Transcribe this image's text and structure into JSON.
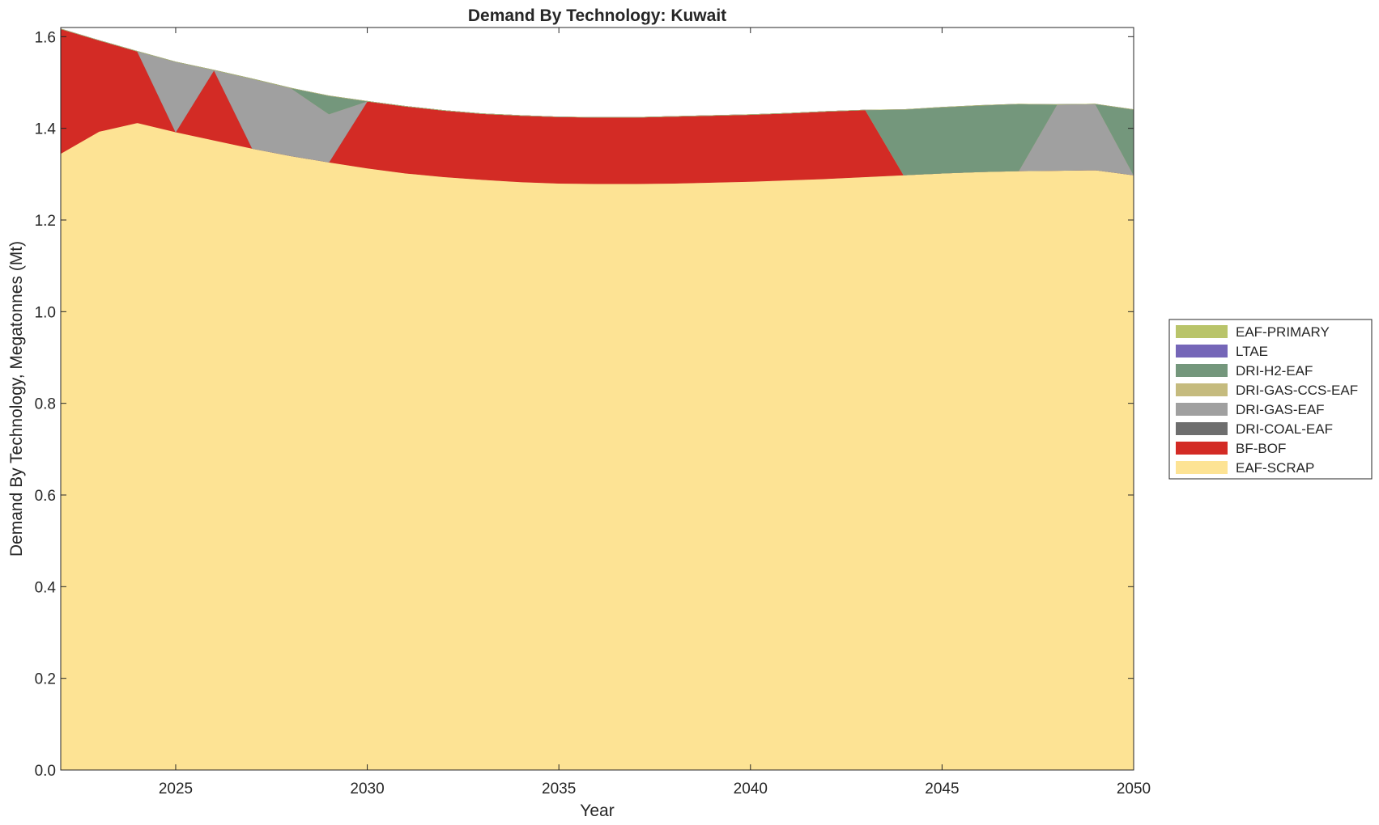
{
  "chart_data": {
    "type": "area",
    "title": "Demand By Technology: Kuwait",
    "xlabel": "Year",
    "ylabel": "Demand By Technology, Megatonnes (Mt)",
    "xlim": [
      2022,
      2050
    ],
    "ylim": [
      0,
      1.62
    ],
    "xticks": [
      2025,
      2030,
      2035,
      2040,
      2045,
      2050
    ],
    "yticks": [
      0.0,
      0.2,
      0.4,
      0.6,
      0.8,
      1.0,
      1.2,
      1.4,
      1.6
    ],
    "xtick_labels": [
      "2025",
      "2030",
      "2035",
      "2040",
      "2045",
      "2050"
    ],
    "ytick_labels": [
      "0.0",
      "0.2",
      "0.4",
      "0.6",
      "0.8",
      "1.0",
      "1.2",
      "1.4",
      "1.6"
    ],
    "legend_position": "outside-right",
    "legend_order": [
      "EAF-PRIMARY",
      "LTAE",
      "DRI-H2-EAF",
      "DRI-GAS-CCS-EAF",
      "DRI-GAS-EAF",
      "DRI-COAL-EAF",
      "BF-BOF",
      "EAF-SCRAP"
    ],
    "x": [
      2022,
      2023,
      2024,
      2025,
      2026,
      2027,
      2028,
      2029,
      2030,
      2031,
      2032,
      2033,
      2034,
      2035,
      2036,
      2037,
      2038,
      2039,
      2040,
      2041,
      2042,
      2043,
      2044,
      2045,
      2046,
      2047,
      2048,
      2049,
      2050
    ],
    "series": [
      {
        "name": "EAF-SCRAP",
        "color": "#fde394",
        "values": [
          1.345,
          1.393,
          1.412,
          1.392,
          1.374,
          1.356,
          1.34,
          1.326,
          1.313,
          1.302,
          1.294,
          1.288,
          1.283,
          1.28,
          1.279,
          1.279,
          1.28,
          1.282,
          1.284,
          1.287,
          1.29,
          1.294,
          1.298,
          1.302,
          1.305,
          1.307,
          1.308,
          1.309,
          1.298
        ]
      },
      {
        "name": "BF-BOF",
        "color": "#d32b25",
        "values": [
          0.272,
          0.199,
          0.156,
          0.0,
          0.153,
          0.0,
          0.0,
          0.0,
          0.146,
          0.146,
          0.145,
          0.144,
          0.145,
          0.145,
          0.145,
          0.145,
          0.146,
          0.146,
          0.146,
          0.146,
          0.147,
          0.146,
          0.0,
          0.0,
          0.0,
          0.0,
          0.0,
          0.0,
          0.0
        ]
      },
      {
        "name": "DRI-COAL-EAF",
        "color": "#6e6e6e",
        "values": [
          0,
          0,
          0,
          0,
          0,
          0,
          0,
          0,
          0,
          0,
          0,
          0,
          0,
          0,
          0,
          0,
          0,
          0,
          0,
          0,
          0,
          0,
          0,
          0,
          0,
          0,
          0,
          0,
          0
        ]
      },
      {
        "name": "DRI-GAS-EAF",
        "color": "#a0a0a0",
        "values": [
          0.0,
          0.0,
          0.0,
          0.153,
          0.0,
          0.152,
          0.148,
          0.105,
          0.0,
          0.0,
          0.0,
          0.0,
          0.0,
          0.0,
          0.0,
          0.0,
          0.0,
          0.0,
          0.0,
          0.0,
          0.0,
          0.0,
          0.0,
          0.0,
          0.0,
          0.0,
          0.144,
          0.144,
          0.0
        ]
      },
      {
        "name": "DRI-GAS-CCS-EAF",
        "color": "#c5bb7e",
        "values": [
          0,
          0,
          0,
          0,
          0,
          0,
          0,
          0,
          0,
          0,
          0,
          0,
          0,
          0,
          0,
          0,
          0,
          0,
          0,
          0,
          0,
          0,
          0,
          0,
          0,
          0,
          0,
          0,
          0
        ]
      },
      {
        "name": "DRI-H2-EAF",
        "color": "#74977c",
        "values": [
          0.0,
          0.0,
          0.0,
          0.0,
          0.0,
          0.0,
          0.0,
          0.04,
          0.0,
          0.0,
          0.0,
          0.0,
          0.0,
          0.0,
          0.0,
          0.0,
          0.0,
          0.0,
          0.0,
          0.0,
          0.0,
          0.0,
          0.143,
          0.144,
          0.145,
          0.146,
          0.0,
          0.0,
          0.143
        ]
      },
      {
        "name": "LTAE",
        "color": "#7566b8",
        "values": [
          0,
          0,
          0,
          0,
          0,
          0,
          0,
          0,
          0,
          0,
          0,
          0,
          0,
          0,
          0,
          0,
          0,
          0,
          0,
          0,
          0,
          0,
          0,
          0,
          0,
          0,
          0,
          0,
          0
        ]
      },
      {
        "name": "EAF-PRIMARY",
        "color": "#b9c46a",
        "values": [
          0,
          0,
          0,
          0,
          0,
          0,
          0,
          0,
          0,
          0,
          0,
          0,
          0,
          0,
          0,
          0,
          0,
          0,
          0,
          0,
          0,
          0,
          0,
          0,
          0,
          0,
          0,
          0,
          0
        ]
      }
    ]
  }
}
